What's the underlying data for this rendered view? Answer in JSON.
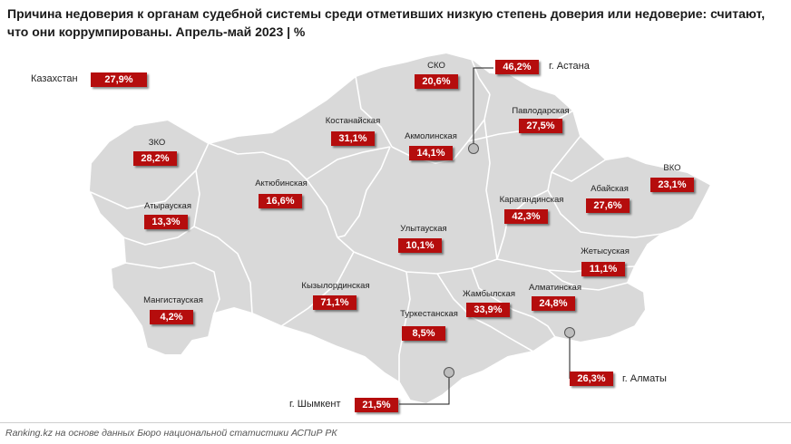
{
  "title": "Причина недоверия к органам судебной системы среди отметивших низкую степень доверия или недоверие: считают, что они коррумпированы. Апрель-май 2023 | %",
  "colors": {
    "region_fill": "#d9d9d9",
    "region_border": "#ffffff",
    "value_box": "#b50d0d",
    "marker": "#bdbdbd"
  },
  "kazakhstan": {
    "label": "Казахстан",
    "value": "27,9%"
  },
  "regions": [
    {
      "name": "СКО",
      "value": "20,6%"
    },
    {
      "name": "Павлодарская",
      "value": "27,5%"
    },
    {
      "name": "Костанайская",
      "value": "31,1%"
    },
    {
      "name": "Акмолинская",
      "value": "14,1%"
    },
    {
      "name": "ЗКО",
      "value": "28,2%"
    },
    {
      "name": "Актюбинская",
      "value": "16,6%"
    },
    {
      "name": "ВКО",
      "value": "23,1%"
    },
    {
      "name": "Атырауская",
      "value": "13,3%"
    },
    {
      "name": "Абайская",
      "value": "27,6%"
    },
    {
      "name": "Карагандинская",
      "value": "42,3%"
    },
    {
      "name": "Улытауская",
      "value": "10,1%"
    },
    {
      "name": "Жетысуская",
      "value": "11,1%"
    },
    {
      "name": "Мангистауская",
      "value": "4,2%"
    },
    {
      "name": "Кызылординская",
      "value": "71,1%"
    },
    {
      "name": "Алматинская",
      "value": "24,8%"
    },
    {
      "name": "Жамбылская",
      "value": "33,9%"
    },
    {
      "name": "Туркестанская",
      "value": "8,5%"
    }
  ],
  "cities": [
    {
      "name": "г. Астана",
      "value": "46,2%"
    },
    {
      "name": "г. Алматы",
      "value": "26,3%"
    },
    {
      "name": "г. Шымкент",
      "value": "21,5%"
    }
  ],
  "source": "Ranking.kz на основе данных Бюро национальной статистики АСПиР РК"
}
